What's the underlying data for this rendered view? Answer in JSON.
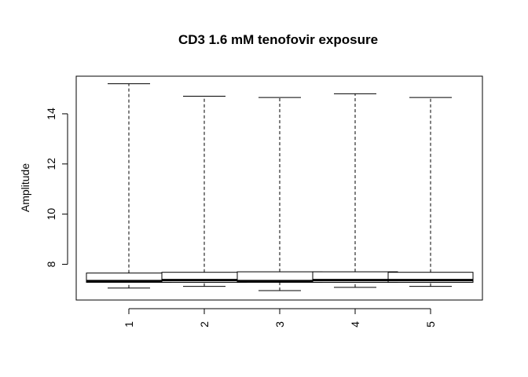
{
  "chart_data": {
    "type": "boxplot",
    "title": "CD3 1.6 mM tenofovir exposure",
    "xlabel": "",
    "ylabel": "Amplitude",
    "ylim": [
      6.95,
      15.25
    ],
    "y_ticks": [
      8,
      10,
      12,
      14
    ],
    "x_tick_rotation_deg": -90,
    "grid": false,
    "legend": "none",
    "categories": [
      "1",
      "2",
      "3",
      "4",
      "5"
    ],
    "boxes": [
      {
        "label": "1",
        "min": 7.05,
        "q1": 7.28,
        "median": 7.33,
        "q3": 7.65,
        "max": 15.2
      },
      {
        "label": "2",
        "min": 7.12,
        "q1": 7.28,
        "median": 7.37,
        "q3": 7.68,
        "max": 14.7
      },
      {
        "label": "3",
        "min": 6.95,
        "q1": 7.28,
        "median": 7.33,
        "q3": 7.7,
        "max": 14.65
      },
      {
        "label": "4",
        "min": 7.08,
        "q1": 7.28,
        "median": 7.37,
        "q3": 7.7,
        "max": 14.8
      },
      {
        "label": "5",
        "min": 7.12,
        "q1": 7.28,
        "median": 7.37,
        "q3": 7.68,
        "max": 14.65
      }
    ],
    "colors": {
      "box_fill": "#ffffff",
      "stroke": "#000000"
    }
  }
}
